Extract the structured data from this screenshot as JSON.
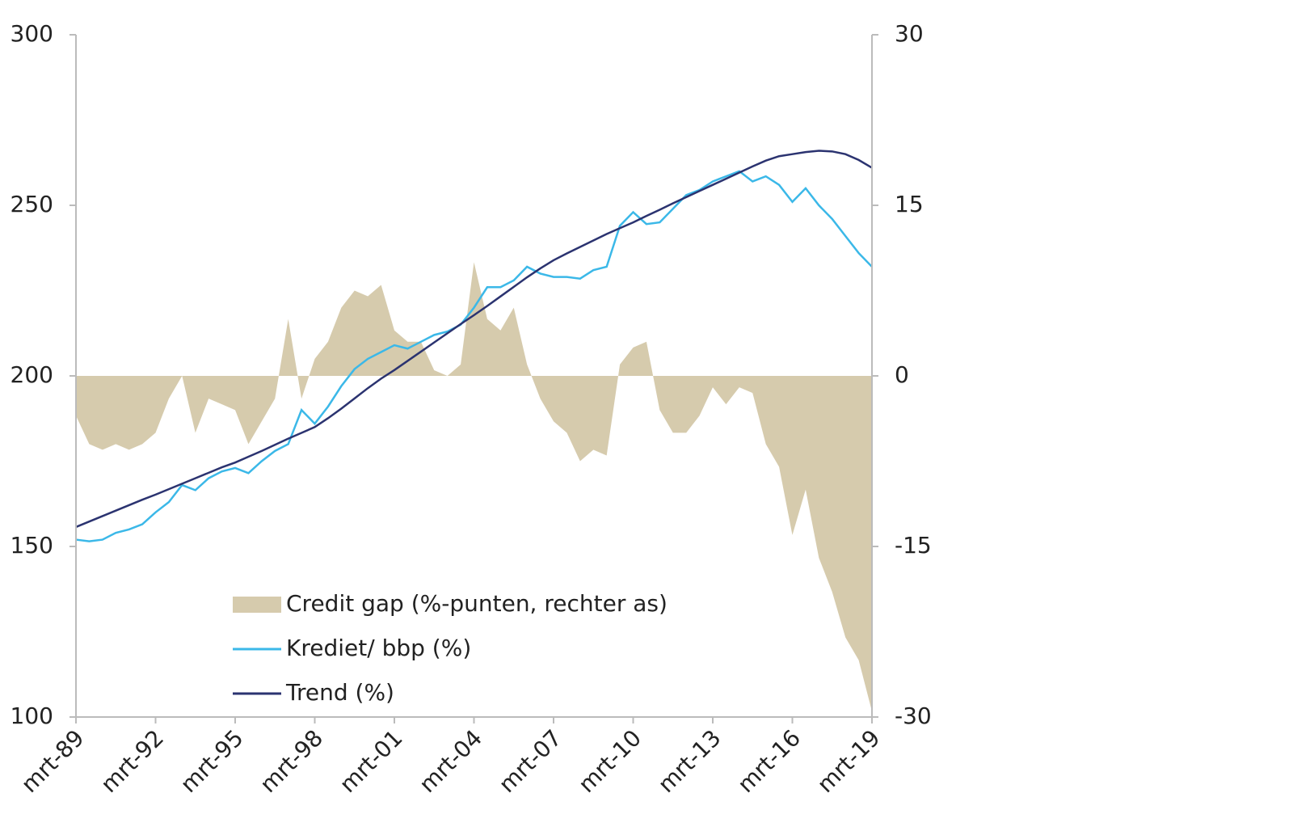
{
  "chart_data": {
    "type": "line",
    "categories": [
      "mrt-89",
      null,
      null,
      null,
      null,
      null,
      "mrt-92",
      null,
      null,
      null,
      null,
      null,
      "mrt-95",
      null,
      null,
      null,
      null,
      null,
      "mrt-98",
      null,
      null,
      null,
      null,
      null,
      "mrt-01",
      null,
      null,
      null,
      null,
      null,
      "mrt-04",
      null,
      null,
      null,
      null,
      null,
      "mrt-07",
      null,
      null,
      null,
      null,
      null,
      "mrt-10",
      null,
      null,
      null,
      null,
      null,
      "mrt-13",
      null,
      null,
      null,
      null,
      null,
      "mrt-16",
      null,
      null,
      null,
      null,
      null,
      "mrt-19"
    ],
    "series": [
      {
        "name": "Credit gap (%-punten, rechter as)",
        "color": "#d6cbad",
        "mark": "area",
        "axis": "y2",
        "values": [
          -3.5,
          -6,
          -6.5,
          -6,
          -6.5,
          -6,
          -5,
          -2,
          0,
          -5,
          -2,
          -2.5,
          -3,
          -6,
          -4,
          -2,
          5,
          -2,
          1.5,
          3,
          6,
          7.5,
          7,
          8,
          4,
          3,
          3,
          0.5,
          0,
          1,
          10,
          5,
          4,
          6,
          1,
          -2,
          -4,
          -5,
          -7.5,
          -6.5,
          -7,
          1,
          2.5,
          3,
          -3,
          -5,
          -5,
          -3.5,
          -1,
          -2.5,
          -1,
          -1.5,
          -6,
          -8,
          -14,
          -10,
          -16,
          -19,
          -23,
          -25,
          -29.5
        ]
      },
      {
        "name": "Krediet/ bbp (%)",
        "color": "#3bb8e8",
        "mark": "line",
        "values": [
          152,
          151.5,
          152,
          154,
          155,
          156.5,
          160,
          163,
          168,
          166.5,
          170,
          172,
          173,
          171.5,
          175,
          178,
          180,
          190,
          186,
          191,
          197,
          202,
          205,
          207,
          209,
          208,
          210,
          212,
          213,
          215,
          220,
          226,
          226,
          228,
          232,
          230,
          229,
          229,
          228.5,
          231,
          232,
          244,
          248,
          244.5,
          245,
          249,
          253,
          254.5,
          257,
          258.5,
          260,
          257,
          258.5,
          256,
          251,
          255,
          250,
          246,
          241,
          236,
          232
        ]
      },
      {
        "name": "Trend (%)",
        "color": "#2b3370",
        "mark": "line",
        "values": [
          155.7,
          157.3,
          158.9,
          160.5,
          162.1,
          163.7,
          165.2,
          166.8,
          168.4,
          170,
          171.6,
          173.2,
          174.6,
          176.3,
          178,
          179.8,
          181.6,
          183.3,
          185,
          187.6,
          190.4,
          193.4,
          196.4,
          199.2,
          201.7,
          204.4,
          207.1,
          209.8,
          212.5,
          215.2,
          217.8,
          220.5,
          223.3,
          226.1,
          228.9,
          231.5,
          233.9,
          235.9,
          237.8,
          239.7,
          241.6,
          243.3,
          245,
          246.9,
          248.7,
          250.6,
          252.4,
          254.2,
          256,
          257.8,
          259.6,
          261.4,
          263.1,
          264.4,
          265,
          265.6,
          266,
          265.8,
          265,
          263.3,
          261
        ]
      }
    ],
    "ylim": [
      100,
      300
    ],
    "yticks": [
      100,
      150,
      200,
      250,
      300
    ],
    "y2lim": [
      -30,
      30
    ],
    "y2ticks": [
      -30,
      -15,
      0,
      15,
      30
    ],
    "grid": false,
    "legend": "lower left"
  }
}
